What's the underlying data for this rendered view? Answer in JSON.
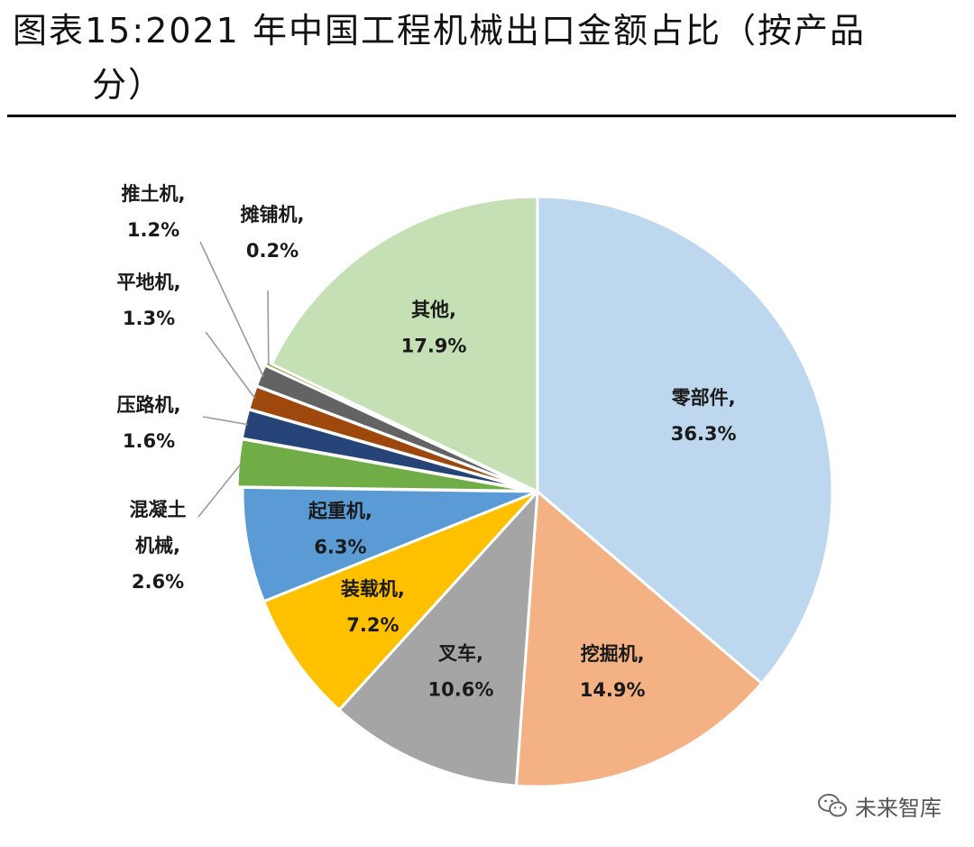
{
  "chart_data": {
    "type": "pie",
    "title_line1": "图表15:2021 年中国工程机械出口金额占比（按产品",
    "title_line2": "分）",
    "slices": [
      {
        "label_lines": [
          "零部件,",
          "36.3%"
        ],
        "value": 36.3,
        "color": "#BDD7EE"
      },
      {
        "label_lines": [
          "挖掘机,",
          "14.9%"
        ],
        "value": 14.9,
        "color": "#F4B183"
      },
      {
        "label_lines": [
          "叉车,",
          "10.6%"
        ],
        "value": 10.6,
        "color": "#A5A5A5"
      },
      {
        "label_lines": [
          "装载机,",
          "7.2%"
        ],
        "value": 7.2,
        "color": "#FFC000"
      },
      {
        "label_lines": [
          "起重机,",
          "6.3%"
        ],
        "value": 6.3,
        "color": "#5B9BD5"
      },
      {
        "label_lines": [
          "混凝土",
          "机械,",
          "2.6%"
        ],
        "value": 2.6,
        "color": "#70AD47"
      },
      {
        "label_lines": [
          "压路机,",
          "1.6%"
        ],
        "value": 1.6,
        "color": "#264478"
      },
      {
        "label_lines": [
          "平地机,",
          "1.3%"
        ],
        "value": 1.3,
        "color": "#9E480E"
      },
      {
        "label_lines": [
          "推土机,",
          "1.2%"
        ],
        "value": 1.2,
        "color": "#636363"
      },
      {
        "label_lines": [
          "摊铺机,",
          "0.2%"
        ],
        "value": 0.2,
        "color": "#997300"
      },
      {
        "label_lines": [
          "其他,",
          "17.9%"
        ],
        "value": 17.9,
        "color": "#C5E0B4"
      }
    ]
  },
  "watermark": {
    "text": "未来智库",
    "icon": "wechat-icon"
  }
}
